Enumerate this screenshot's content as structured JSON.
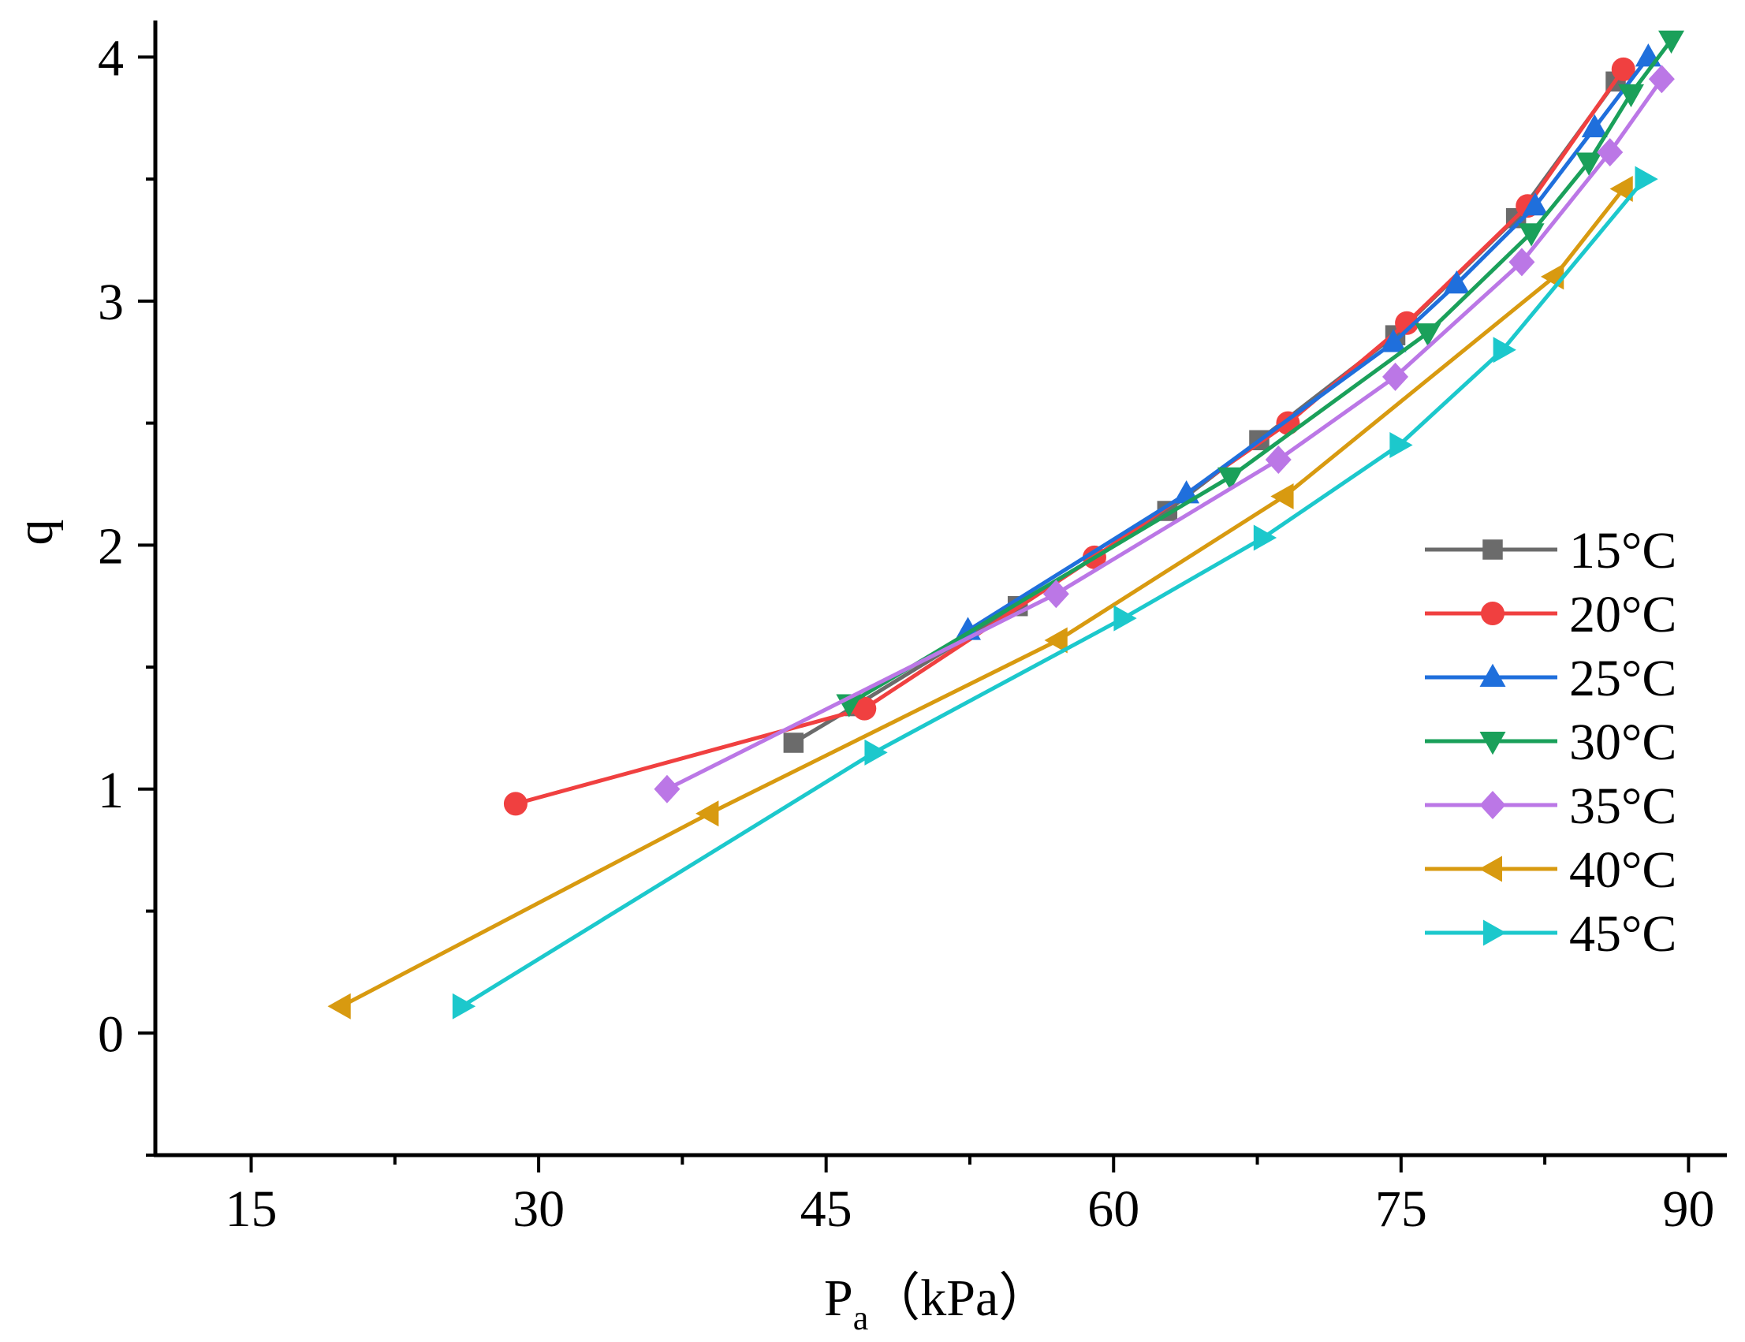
{
  "chart_data": {
    "type": "line",
    "title": "",
    "xlabel_main": "P",
    "xlabel_sub": "a",
    "xlabel_unit": "（kPa）",
    "ylabel": "q",
    "xlim": [
      10,
      92
    ],
    "ylim": [
      -0.5,
      4.15
    ],
    "x_ticks": [
      15,
      30,
      45,
      60,
      75,
      90
    ],
    "x_tick_labels": [
      "15",
      "30",
      "45",
      "60",
      "75",
      "90"
    ],
    "y_ticks": [
      0,
      1,
      2,
      3,
      4
    ],
    "y_tick_labels": [
      "0",
      "1",
      "2",
      "3",
      "4"
    ],
    "grid": false,
    "legend_position": "right",
    "series": [
      {
        "name": "15°C",
        "color": "#6b6b6b",
        "marker": "square",
        "points": [
          [
            43.3,
            1.19
          ],
          [
            46.5,
            1.34
          ],
          [
            55.0,
            1.75
          ],
          [
            62.8,
            2.14
          ],
          [
            67.6,
            2.43
          ],
          [
            74.7,
            2.86
          ],
          [
            81.0,
            3.34
          ],
          [
            86.2,
            3.9
          ]
        ]
      },
      {
        "name": "20°C",
        "color": "#f04040",
        "marker": "circle",
        "points": [
          [
            28.8,
            0.94
          ],
          [
            47.0,
            1.33
          ],
          [
            59.0,
            1.95
          ],
          [
            69.1,
            2.5
          ],
          [
            75.3,
            2.91
          ],
          [
            81.6,
            3.39
          ],
          [
            86.6,
            3.95
          ]
        ]
      },
      {
        "name": "25°C",
        "color": "#1f6fdc",
        "marker": "triangle-up",
        "points": [
          [
            52.4,
            1.65
          ],
          [
            63.8,
            2.21
          ],
          [
            74.6,
            2.83
          ],
          [
            77.9,
            3.07
          ],
          [
            82.0,
            3.39
          ],
          [
            85.1,
            3.71
          ],
          [
            87.9,
            4.0
          ]
        ]
      },
      {
        "name": "30°C",
        "color": "#1aa05a",
        "marker": "triangle-down",
        "points": [
          [
            46.2,
            1.35
          ],
          [
            66.1,
            2.28
          ],
          [
            76.4,
            2.87
          ],
          [
            81.8,
            3.28
          ],
          [
            84.8,
            3.57
          ],
          [
            87.0,
            3.85
          ],
          [
            89.1,
            4.07
          ]
        ]
      },
      {
        "name": "35°C",
        "color": "#bb77e6",
        "marker": "diamond",
        "points": [
          [
            36.7,
            1.0
          ],
          [
            57.0,
            1.8
          ],
          [
            68.6,
            2.35
          ],
          [
            74.7,
            2.69
          ],
          [
            81.3,
            3.16
          ],
          [
            85.9,
            3.61
          ],
          [
            88.6,
            3.91
          ]
        ]
      },
      {
        "name": "40°C",
        "color": "#d89a10",
        "marker": "triangle-left",
        "points": [
          [
            19.7,
            0.11
          ],
          [
            38.9,
            0.9
          ],
          [
            57.1,
            1.61
          ],
          [
            68.9,
            2.2
          ],
          [
            83.0,
            3.1
          ],
          [
            86.6,
            3.46
          ]
        ]
      },
      {
        "name": "45°C",
        "color": "#1cc8cc",
        "marker": "triangle-right",
        "points": [
          [
            26.0,
            0.11
          ],
          [
            47.5,
            1.15
          ],
          [
            60.5,
            1.7
          ],
          [
            67.8,
            2.03
          ],
          [
            74.9,
            2.41
          ],
          [
            80.3,
            2.8
          ],
          [
            87.7,
            3.5
          ]
        ]
      }
    ]
  }
}
